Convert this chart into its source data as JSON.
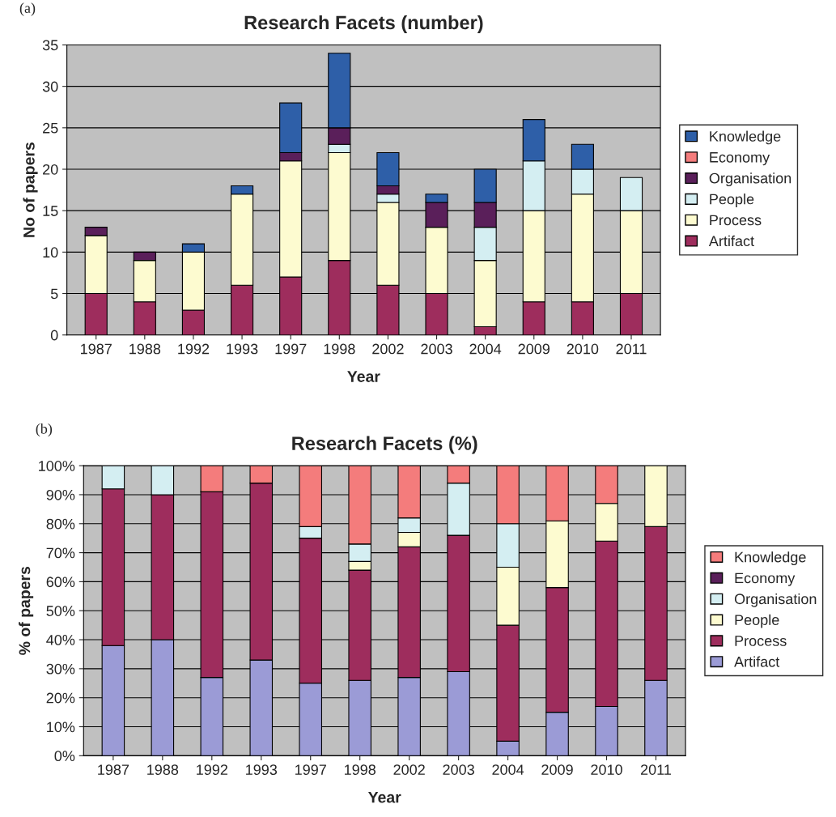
{
  "chart_data": [
    {
      "type": "bar",
      "title": "Research Facets (number)",
      "xlabel": "Year",
      "ylabel": "No of papers",
      "annotations": [
        "(a)"
      ],
      "stacked": true,
      "legend": "right",
      "grid": "y",
      "categories": [
        "1987",
        "1988",
        "1992",
        "1993",
        "1997",
        "1998",
        "2002",
        "2003",
        "2004",
        "2009",
        "2010",
        "2011"
      ],
      "ylim": [
        0,
        35
      ],
      "yticks": [
        0,
        5,
        10,
        15,
        20,
        25,
        30,
        35
      ],
      "series": [
        {
          "name": "Artifact",
          "color": "#9e2d5d",
          "values": [
            5,
            4,
            3,
            6,
            7,
            9,
            6,
            5,
            1,
            4,
            4,
            5
          ]
        },
        {
          "name": "Process",
          "color": "#fdfbd0",
          "values": [
            7,
            5,
            7,
            11,
            14,
            13,
            10,
            8,
            8,
            11,
            13,
            10
          ]
        },
        {
          "name": "People",
          "color": "#d4eef2",
          "values": [
            0,
            0,
            0,
            0,
            0,
            1,
            1,
            0,
            4,
            6,
            3,
            4
          ]
        },
        {
          "name": "Organisation",
          "color": "#5a1f5a",
          "values": [
            1,
            1,
            0,
            0,
            1,
            2,
            1,
            3,
            3,
            0,
            0,
            0
          ]
        },
        {
          "name": "Economy",
          "color": "#f47c7c",
          "values": [
            0,
            0,
            0,
            0,
            0,
            0,
            0,
            0,
            0,
            0,
            0,
            0
          ]
        },
        {
          "name": "Knowledge",
          "color": "#2e5fa8",
          "values": [
            0,
            0,
            1,
            1,
            6,
            9,
            4,
            1,
            4,
            5,
            3,
            0
          ]
        }
      ]
    },
    {
      "type": "bar",
      "title": "Research Facets (%)",
      "xlabel": "Year",
      "ylabel": "% of papers",
      "annotations": [
        "(b)"
      ],
      "stacked": true,
      "legend": "right",
      "grid": "y",
      "categories": [
        "1987",
        "1988",
        "1992",
        "1993",
        "1997",
        "1998",
        "2002",
        "2003",
        "2004",
        "2009",
        "2010",
        "2011"
      ],
      "ylim": [
        0,
        100
      ],
      "yticks": [
        {
          "value": 0,
          "label": "0%"
        },
        {
          "value": 10,
          "label": "10%"
        },
        {
          "value": 20,
          "label": "20%"
        },
        {
          "value": 30,
          "label": "30%"
        },
        {
          "value": 40,
          "label": "40%"
        },
        {
          "value": 50,
          "label": "50%"
        },
        {
          "value": 60,
          "label": "60%"
        },
        {
          "value": 70,
          "label": "70%"
        },
        {
          "value": 80,
          "label": "80%"
        },
        {
          "value": 90,
          "label": "90%"
        },
        {
          "value": 100,
          "label": "100%"
        }
      ],
      "series": [
        {
          "name": "Artifact",
          "color": "#9b9bd6",
          "values": [
            38,
            40,
            27,
            33,
            25,
            26,
            27,
            29,
            5,
            15,
            17,
            26
          ]
        },
        {
          "name": "Process",
          "color": "#9e2d5d",
          "values": [
            54,
            50,
            64,
            61,
            50,
            38,
            45,
            47,
            40,
            43,
            57,
            53
          ]
        },
        {
          "name": "People",
          "color": "#fdfbd0",
          "values": [
            0,
            0,
            0,
            0,
            0,
            3,
            5,
            0,
            20,
            23,
            13,
            21
          ]
        },
        {
          "name": "Organisation",
          "color": "#d4eef2",
          "values": [
            8,
            10,
            0,
            0,
            4,
            6,
            5,
            18,
            15,
            0,
            0,
            0
          ]
        },
        {
          "name": "Economy",
          "color": "#5a1f5a",
          "values": [
            0,
            0,
            0,
            0,
            0,
            0,
            0,
            0,
            0,
            0,
            0,
            0
          ]
        },
        {
          "name": "Knowledge",
          "color": "#f47c7c",
          "values": [
            0,
            0,
            9,
            6,
            21,
            27,
            18,
            6,
            20,
            19,
            13,
            0
          ]
        }
      ]
    }
  ]
}
